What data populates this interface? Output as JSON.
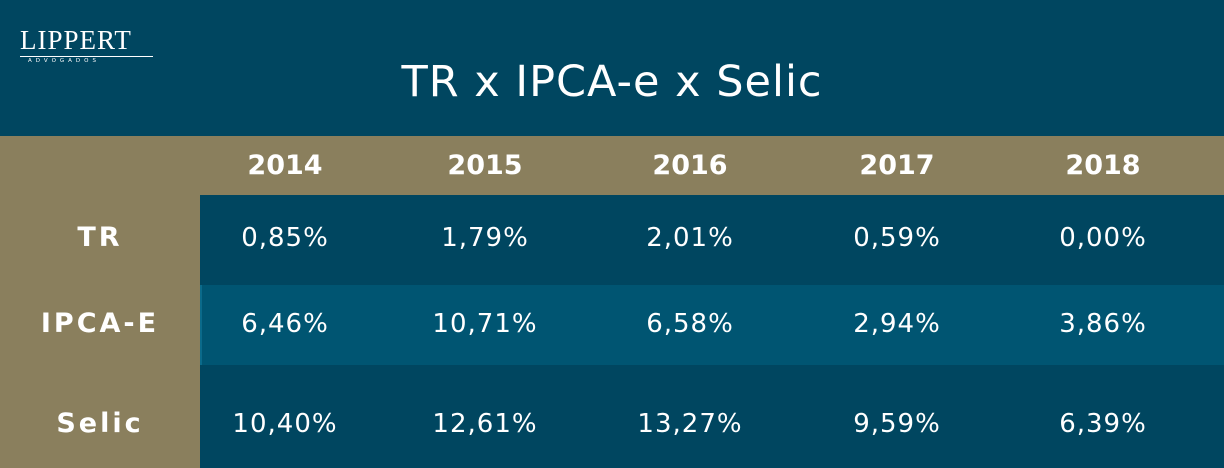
{
  "logo": {
    "name": "LIPPERT",
    "subtitle": "ADVOGADOS"
  },
  "colors": {
    "background": "#004660",
    "band": "#8a7f5d",
    "highlight_row": "#005572",
    "text": "#ffffff"
  },
  "chart_data": {
    "type": "table",
    "title": "TR x IPCA-e x Selic",
    "columns": [
      "2014",
      "2015",
      "2016",
      "2017",
      "2018"
    ],
    "rows": [
      {
        "label": "TR",
        "values": [
          "0,85%",
          "1,79%",
          "2,01%",
          "0,59%",
          "0,00%"
        ]
      },
      {
        "label": "IPCA-E",
        "values": [
          "6,46%",
          "10,71%",
          "6,58%",
          "2,94%",
          "3,86%"
        ]
      },
      {
        "label": "Selic",
        "values": [
          "10,40%",
          "12,61%",
          "13,27%",
          "9,59%",
          "6,39%"
        ]
      }
    ]
  }
}
